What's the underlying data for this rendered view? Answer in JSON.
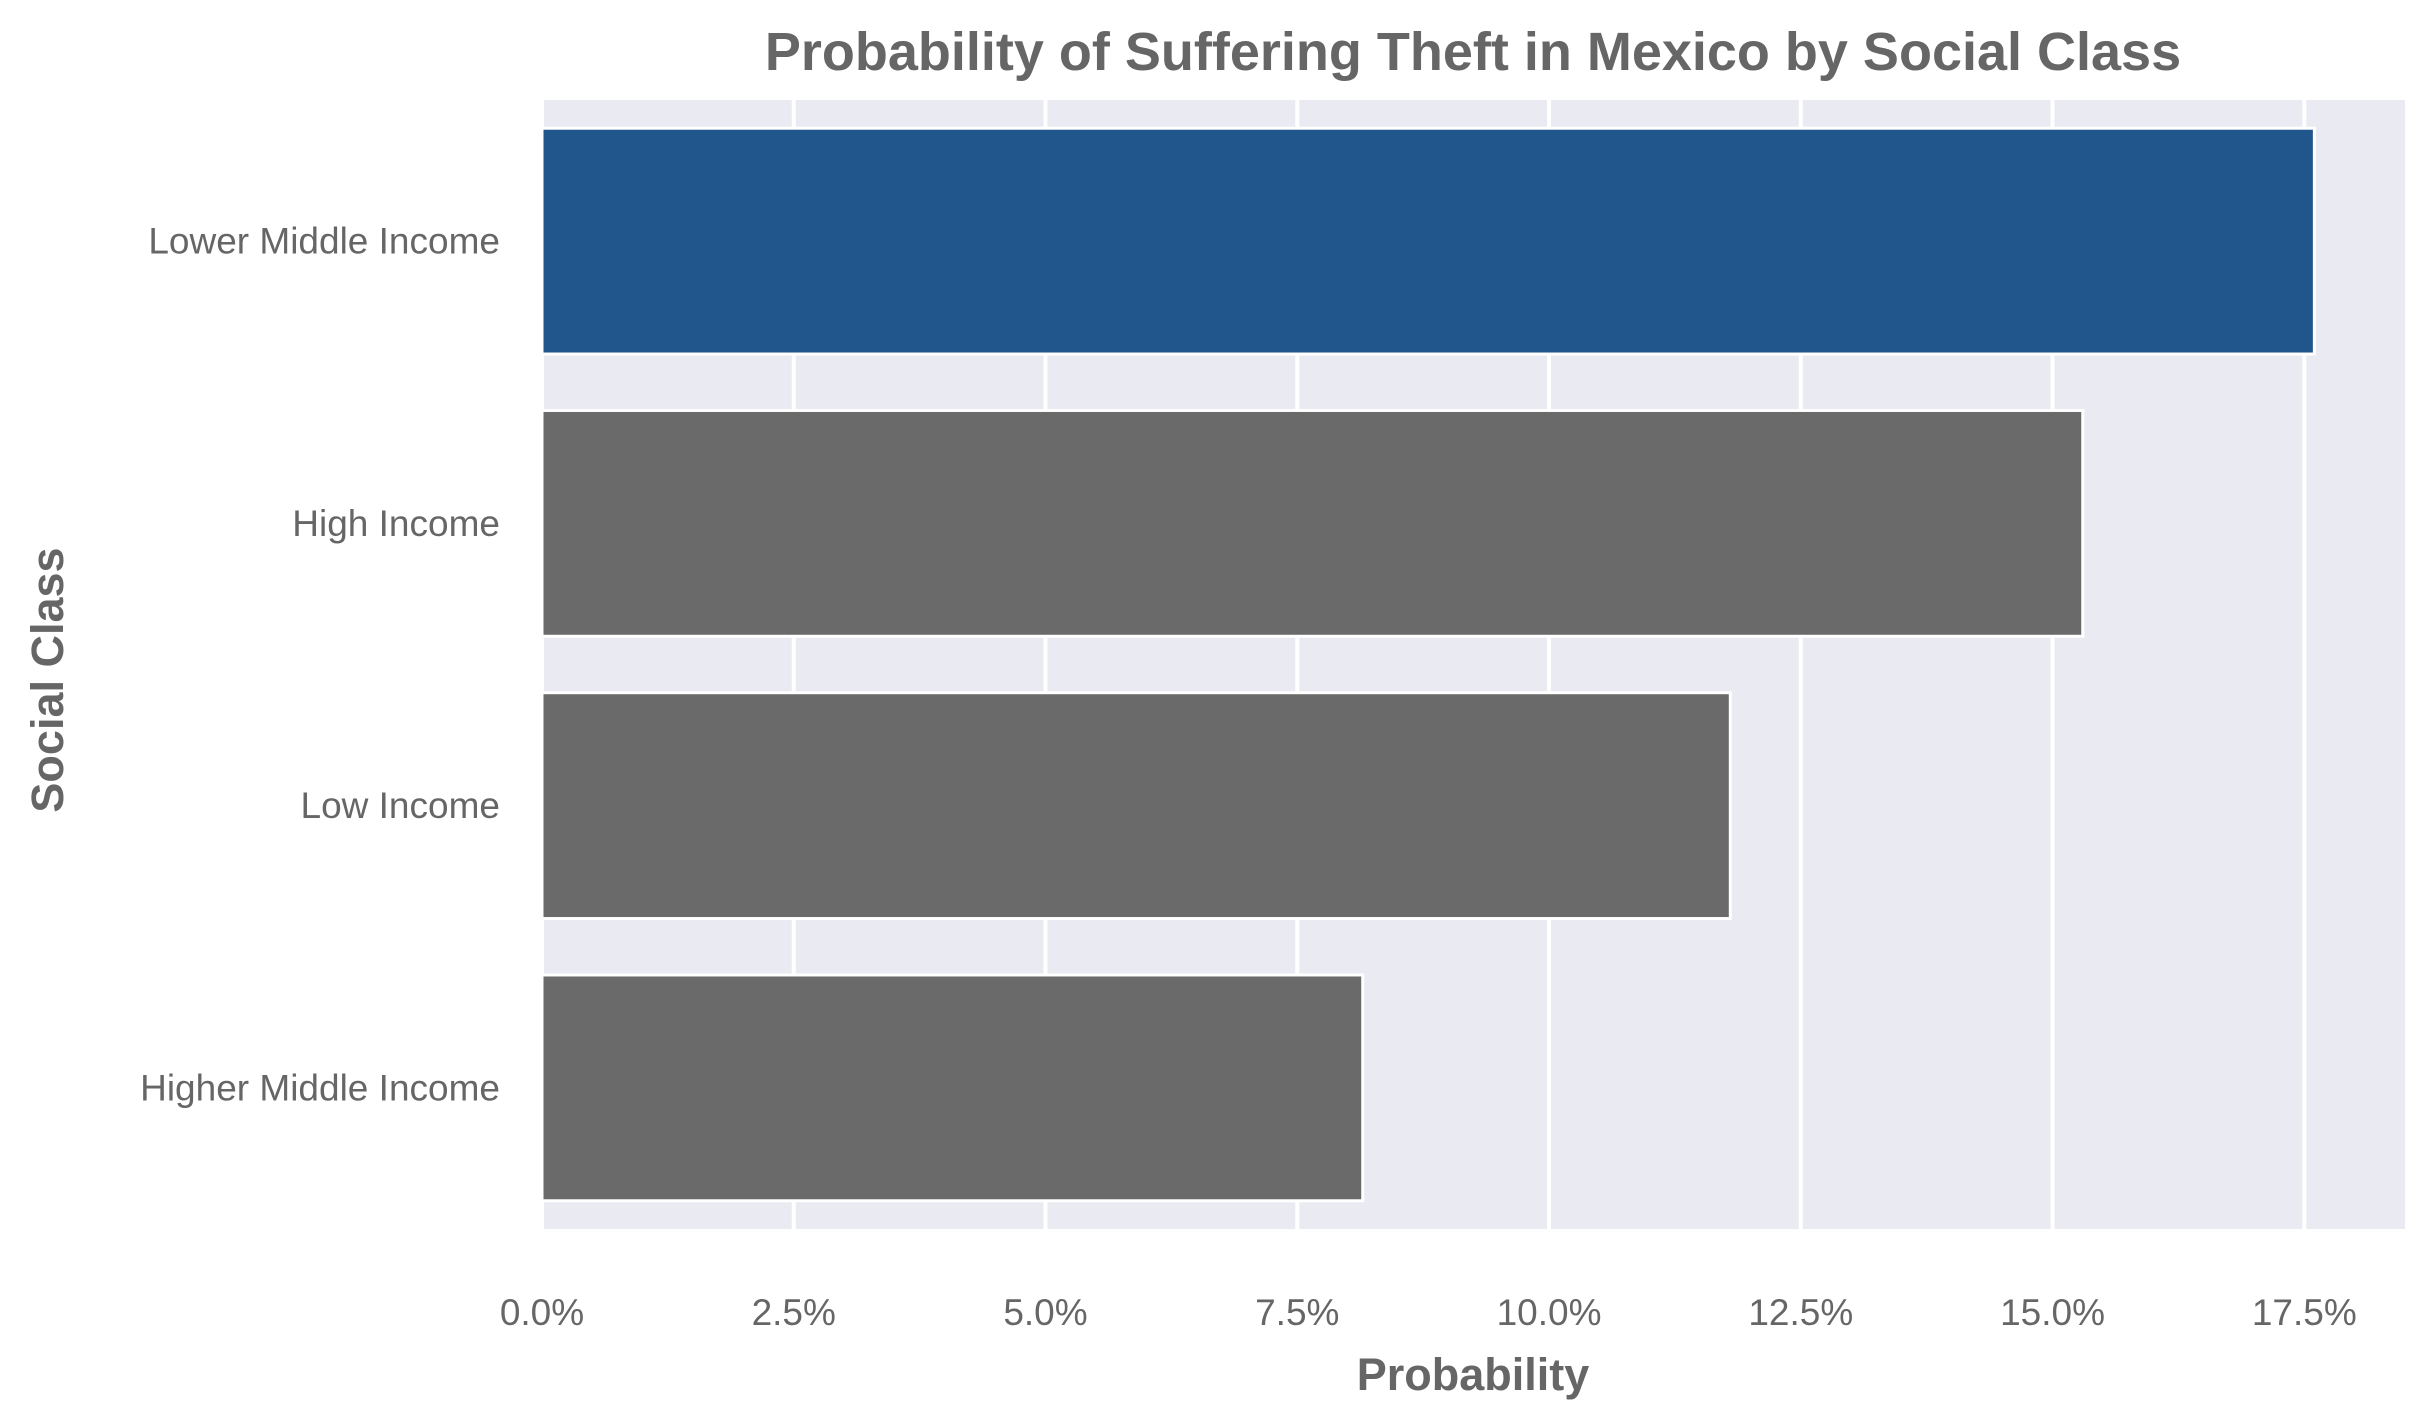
{
  "chart_data": {
    "type": "bar",
    "orientation": "horizontal",
    "title": "Probability of Suffering Theft in Mexico by Social Class",
    "xlabel": "Probability",
    "ylabel": "Social Class",
    "categories": [
      "Lower Middle Income",
      "High Income",
      "Low Income",
      "Higher Middle Income"
    ],
    "values": [
      0.176,
      0.153,
      0.118,
      0.0815
    ],
    "xlim": [
      0,
      0.185
    ],
    "xticks": [
      0,
      0.025,
      0.05,
      0.075,
      0.1,
      0.125,
      0.15,
      0.175
    ],
    "xtick_labels": [
      "0.0%",
      "2.5%",
      "5.0%",
      "7.5%",
      "10.0%",
      "12.5%",
      "15.0%",
      "17.5%"
    ],
    "grid": true,
    "legend": "none",
    "colors": {
      "highlight": "#21568C",
      "default": "#6A6A6A",
      "background": "#EAEAF2",
      "grid": "#FFFFFF",
      "text": "#666666"
    },
    "highlighted_category": "Lower Middle Income"
  }
}
